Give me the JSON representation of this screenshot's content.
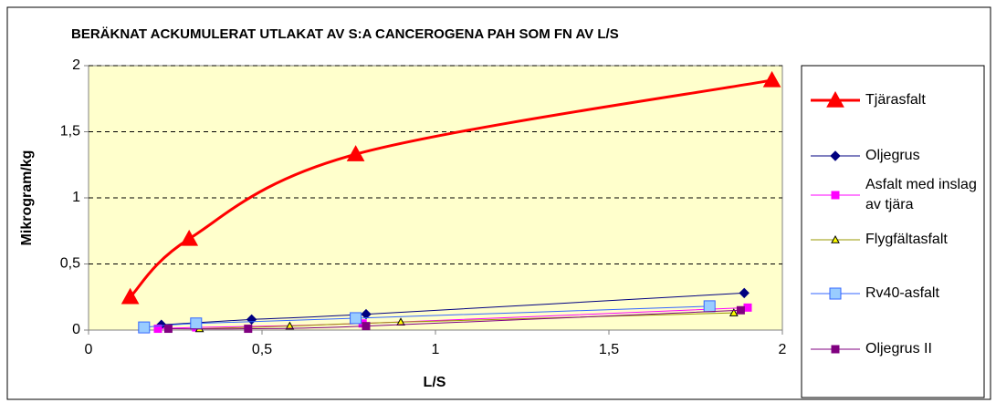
{
  "chart_data": {
    "type": "line",
    "title": "BERÄKNAT ACKUMULERAT UTLAKAT AV S:A CANCEROGENA PAH SOM FN AV L/S",
    "x_label": "L/S",
    "y_label": "Mikrogram/kg",
    "xlim": [
      0,
      2
    ],
    "xticks": [
      0,
      {
        "value": 0.5,
        "label": "0,5"
      },
      1,
      {
        "value": 1.5,
        "label": "1,5"
      },
      2
    ],
    "ylim": [
      0,
      2
    ],
    "yticks": [
      0,
      {
        "value": 0.5,
        "label": "0,5"
      },
      1,
      {
        "value": 1.5,
        "label": "1,5"
      },
      2
    ],
    "grid": true,
    "legend": "right",
    "series": [
      {
        "name": "Tjärasfalt",
        "color": "#ff0000",
        "marker": "triangle",
        "x": [
          0.12,
          0.29,
          0.77,
          1.97
        ],
        "values": [
          0.25,
          0.69,
          1.33,
          1.89
        ]
      },
      {
        "name": "Oljegrus",
        "color": "#000080",
        "marker": "diamond",
        "x": [
          0.21,
          0.47,
          0.8,
          1.89
        ],
        "values": [
          0.04,
          0.08,
          0.12,
          0.28
        ]
      },
      {
        "name": "Asfalt med inslag av tjära",
        "color": "#ff00ff",
        "marker": "square",
        "x": [
          0.2,
          0.31,
          0.79,
          1.9
        ],
        "values": [
          0.01,
          0.02,
          0.05,
          0.17
        ]
      },
      {
        "name": "Flygfältasfalt",
        "color": "#ffff00",
        "marker": "triangle",
        "x": [
          0.32,
          0.58,
          0.9,
          1.86
        ],
        "values": [
          0.01,
          0.03,
          0.06,
          0.13
        ]
      },
      {
        "name": "Rv40-asfalt",
        "color": "#99ccff",
        "marker": "square",
        "x": [
          0.16,
          0.31,
          0.77,
          1.79
        ],
        "values": [
          0.02,
          0.05,
          0.09,
          0.18
        ]
      },
      {
        "name": "Oljegrus II",
        "color": "#800080",
        "marker": "square",
        "x": [
          0.23,
          0.46,
          0.8,
          1.88
        ],
        "values": [
          0.01,
          0.01,
          0.03,
          0.15
        ]
      }
    ]
  }
}
